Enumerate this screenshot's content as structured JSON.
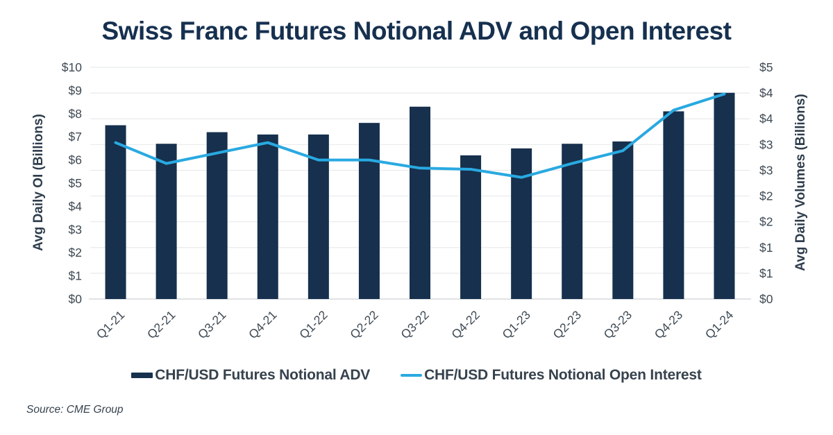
{
  "source_note": "Source: CME Group",
  "colors": {
    "bar_navy": "#16304D",
    "line_blue": "#29A9E1",
    "title_text": "#16304F",
    "axis_title_text": "#2E3D4C",
    "tick_text": "#3E4953",
    "legend_text": "#36424D",
    "source_text": "#36424D",
    "gridline": "#E8EAEC",
    "baseline": "#D6D9DC",
    "background": "#FFFFFF"
  },
  "chart_data": {
    "type": "combo-bar-line",
    "title": "Swiss Franc Futures Notional ADV and Open Interest",
    "categories": [
      "Q1-21",
      "Q2-21",
      "Q3-21",
      "Q4-21",
      "Q1-22",
      "Q2-22",
      "Q3-22",
      "Q4-22",
      "Q1-23",
      "Q2-23",
      "Q3-23",
      "Q4-23",
      "Q1-24"
    ],
    "series": [
      {
        "name": "CHF/USD Futures Notional ADV",
        "type": "bar",
        "axis": "right",
        "color": "#16304D",
        "values": [
          3.75,
          3.35,
          3.6,
          3.55,
          3.55,
          3.8,
          4.15,
          3.1,
          3.25,
          3.35,
          3.4,
          4.05,
          4.45
        ]
      },
      {
        "name": "CHF/USD Futures Notional Open Interest",
        "type": "line",
        "axis": "left",
        "color": "#29A9E1",
        "values": [
          6.75,
          5.85,
          6.3,
          6.75,
          6.0,
          6.0,
          5.65,
          5.6,
          5.25,
          5.85,
          6.4,
          8.15,
          8.85
        ]
      }
    ],
    "left_axis": {
      "label": "Avg Daily OI (Billions)",
      "min": 0,
      "max": 10,
      "tick_labels": [
        "$10",
        "$9",
        "$8",
        "$7",
        "$6",
        "$5",
        "$4",
        "$3",
        "$2",
        "$1",
        "$0"
      ]
    },
    "right_axis": {
      "label": "Avg Daily Volumes (Billions)",
      "min": 0,
      "max": 5,
      "tick_labels": [
        "$5",
        "$4",
        "$4",
        "$3",
        "$3",
        "$2",
        "$2",
        "$1",
        "$1",
        "$0"
      ]
    },
    "grid": "horizontal",
    "legend_position": "bottom",
    "xlabel": "",
    "ylabel_left": "Avg Daily OI (Billions)",
    "ylabel_right": "Avg Daily Volumes (Billions)"
  }
}
